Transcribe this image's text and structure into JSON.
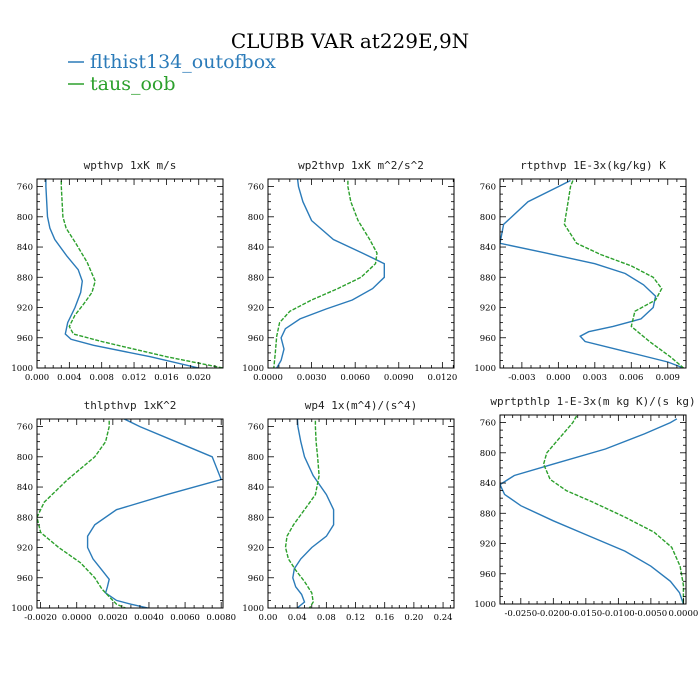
{
  "title": "CLUBB VAR at229E,9N",
  "legend": [
    {
      "label": "flthist134_outofbox",
      "color": "#2b7bb9"
    },
    {
      "label": "taus_oob",
      "color": "#2ca02c"
    }
  ],
  "chart_data": [
    {
      "type": "line",
      "title": "wpthvp   1xK m/s",
      "xlim": [
        0,
        0.023
      ],
      "ylim": [
        1000,
        750
      ],
      "xticks": [
        "0.000",
        "0.004",
        "0.008",
        "0.012",
        "0.016",
        "0.020"
      ],
      "xtick_values": [
        0,
        0.004,
        0.008,
        0.012,
        0.016,
        0.02
      ],
      "yticks": [
        "760",
        "800",
        "840",
        "880",
        "920",
        "960",
        "1000"
      ],
      "ytick_values": [
        760,
        800,
        840,
        880,
        920,
        960,
        1000
      ],
      "series": [
        {
          "name": "flthist134_outofbox",
          "x": [
            0.0011,
            0.0011,
            0.0012,
            0.0013,
            0.0016,
            0.0022,
            0.0037,
            0.0051,
            0.0056,
            0.0054,
            0.0047,
            0.0038,
            0.0035,
            0.0042,
            0.007,
            0.014,
            0.02
          ],
          "y": [
            745,
            760,
            780,
            800,
            815,
            830,
            852,
            870,
            885,
            900,
            920,
            940,
            955,
            962,
            970,
            985,
            1000
          ]
        },
        {
          "name": "taus_oob",
          "x": [
            0.003,
            0.003,
            0.0031,
            0.0032,
            0.0036,
            0.0048,
            0.0062,
            0.0072,
            0.0068,
            0.0058,
            0.0047,
            0.004,
            0.0045,
            0.008,
            0.016,
            0.023
          ],
          "y": [
            745,
            760,
            780,
            800,
            815,
            835,
            860,
            885,
            900,
            915,
            930,
            945,
            955,
            965,
            985,
            1000
          ]
        }
      ]
    },
    {
      "type": "line",
      "title": "wp2thvp   1xK m^2/s^2",
      "xlim": [
        0,
        0.0128
      ],
      "ylim": [
        1000,
        750
      ],
      "xticks": [
        "0.0000",
        "0.0030",
        "0.0060",
        "0.0090",
        "0.0120"
      ],
      "xtick_values": [
        0,
        0.003,
        0.006,
        0.009,
        0.012
      ],
      "yticks": [
        "760",
        "800",
        "840",
        "880",
        "920",
        "960",
        "1000"
      ],
      "ytick_values": [
        760,
        800,
        840,
        880,
        920,
        960,
        1000
      ],
      "series": [
        {
          "name": "flthist134_outofbox",
          "x": [
            0.002,
            0.0021,
            0.0024,
            0.003,
            0.0045,
            0.0065,
            0.008,
            0.008,
            0.0072,
            0.0058,
            0.004,
            0.0022,
            0.0012,
            0.0009,
            0.0011,
            0.0009,
            0.0006,
            0.0005
          ],
          "y": [
            745,
            760,
            780,
            805,
            830,
            848,
            862,
            880,
            895,
            910,
            922,
            935,
            948,
            960,
            975,
            990,
            1000,
            1003
          ]
        },
        {
          "name": "taus_oob",
          "x": [
            0.0055,
            0.0055,
            0.0057,
            0.0062,
            0.007,
            0.0075,
            0.0074,
            0.0064,
            0.0048,
            0.003,
            0.0015,
            0.0008,
            0.0006,
            0.0005,
            0.0004
          ],
          "y": [
            745,
            760,
            780,
            805,
            830,
            848,
            862,
            880,
            895,
            910,
            925,
            940,
            958,
            980,
            1000
          ]
        }
      ]
    },
    {
      "type": "line",
      "title": "rtpthvp   1E-3x(kg/kg) K",
      "xlim": [
        -0.0048,
        0.0105
      ],
      "ylim": [
        1000,
        750
      ],
      "xticks": [
        "-0.003",
        "0.000",
        "0.003",
        "0.006",
        "0.009"
      ],
      "xtick_values": [
        -0.003,
        0.0,
        0.003,
        0.006,
        0.009
      ],
      "yticks": [
        "760",
        "800",
        "840",
        "880",
        "920",
        "960",
        "1000"
      ],
      "ytick_values": [
        760,
        800,
        840,
        880,
        920,
        960,
        1000
      ],
      "series": [
        {
          "name": "flthist134_outofbox",
          "x": [
            0.001,
            0.0,
            -0.0025,
            -0.0045,
            -0.0048,
            -0.001,
            0.003,
            0.0055,
            0.007,
            0.008,
            0.0078,
            0.0068,
            0.0045,
            0.0025,
            0.0018,
            0.0022,
            0.0055,
            0.009,
            0.0103
          ],
          "y": [
            752,
            760,
            780,
            810,
            835,
            848,
            862,
            875,
            890,
            905,
            920,
            935,
            945,
            952,
            958,
            965,
            978,
            992,
            1000
          ]
        },
        {
          "name": "taus_oob",
          "x": [
            0.0012,
            0.001,
            0.0008,
            0.0005,
            0.0015,
            0.0035,
            0.006,
            0.0078,
            0.0085,
            0.008,
            0.0063,
            0.006,
            0.0075,
            0.0092,
            0.0103
          ],
          "y": [
            752,
            760,
            780,
            810,
            835,
            850,
            865,
            880,
            895,
            910,
            925,
            945,
            965,
            985,
            1000
          ]
        }
      ]
    },
    {
      "type": "line",
      "title": "thlpthvp   1xK^2",
      "xlim": [
        -0.0022,
        0.0081
      ],
      "ylim": [
        1000,
        750
      ],
      "xticks": [
        "-0.0020",
        "0.0000",
        "0.0020",
        "0.0040",
        "0.0060",
        "0.0080"
      ],
      "xtick_values": [
        -0.002,
        0.0,
        0.002,
        0.004,
        0.006,
        0.008
      ],
      "yticks": [
        "760",
        "800",
        "840",
        "880",
        "920",
        "960",
        "1000"
      ],
      "ytick_values": [
        760,
        800,
        840,
        880,
        920,
        960,
        1000
      ],
      "series": [
        {
          "name": "flthist134_outofbox",
          "x": [
            0.0022,
            0.0035,
            0.0055,
            0.0075,
            0.008,
            0.005,
            0.0022,
            0.001,
            0.0006,
            0.0006,
            0.0009,
            0.0014,
            0.0018,
            0.0017,
            0.0016,
            0.0022,
            0.003,
            0.0045
          ],
          "y": [
            745,
            760,
            780,
            800,
            830,
            850,
            870,
            890,
            905,
            920,
            935,
            950,
            962,
            972,
            980,
            990,
            995,
            1003
          ]
        },
        {
          "name": "taus_oob",
          "x": [
            0.0018,
            0.0018,
            0.0016,
            0.001,
            -0.0005,
            -0.0018,
            -0.0022,
            -0.002,
            -0.001,
            0.0002,
            0.001,
            0.0014,
            0.0018,
            0.0022,
            0.003
          ],
          "y": [
            745,
            760,
            780,
            800,
            830,
            860,
            880,
            900,
            920,
            940,
            960,
            975,
            985,
            995,
            1003
          ]
        }
      ]
    },
    {
      "type": "line",
      "title": "wp4   1x(m^4)/(s^4)",
      "xlim": [
        0,
        0.255
      ],
      "ylim": [
        1000,
        750
      ],
      "xticks": [
        "0.00",
        "0.04",
        "0.08",
        "0.12",
        "0.16",
        "0.20",
        "0.24"
      ],
      "xtick_values": [
        0.0,
        0.04,
        0.08,
        0.12,
        0.16,
        0.2,
        0.24
      ],
      "yticks": [
        "760",
        "800",
        "840",
        "880",
        "920",
        "960",
        "1000"
      ],
      "ytick_values": [
        760,
        800,
        840,
        880,
        920,
        960,
        1000
      ],
      "series": [
        {
          "name": "flthist134_outofbox",
          "x": [
            0.04,
            0.041,
            0.045,
            0.05,
            0.062,
            0.08,
            0.09,
            0.09,
            0.08,
            0.06,
            0.045,
            0.036,
            0.034,
            0.038,
            0.046,
            0.05,
            0.04,
            0.025
          ],
          "y": [
            745,
            760,
            780,
            800,
            825,
            850,
            870,
            890,
            905,
            920,
            935,
            948,
            960,
            972,
            982,
            992,
            1000,
            1003
          ]
        },
        {
          "name": "taus_oob",
          "x": [
            0.065,
            0.065,
            0.066,
            0.068,
            0.07,
            0.065,
            0.05,
            0.035,
            0.026,
            0.024,
            0.028,
            0.038,
            0.05,
            0.06,
            0.062,
            0.055
          ],
          "y": [
            745,
            760,
            780,
            800,
            825,
            850,
            870,
            890,
            905,
            920,
            935,
            950,
            965,
            980,
            992,
            1003
          ]
        }
      ]
    },
    {
      "type": "line",
      "title": "wprtpthlp   1-E-3x(m kg K)/(s kg)",
      "xlim": [
        -0.0282,
        0.0004
      ],
      "ylim": [
        1000,
        750
      ],
      "xticks": [
        "-0.0250",
        "-0.0200",
        "-0.0150",
        "-0.0100",
        "-0.0050",
        "0.0000"
      ],
      "xtick_values": [
        -0.025,
        -0.02,
        -0.015,
        -0.01,
        -0.005,
        0.0
      ],
      "yticks": [
        "760",
        "800",
        "840",
        "880",
        "920",
        "960",
        "1000"
      ],
      "ytick_values": [
        760,
        800,
        840,
        880,
        920,
        960,
        1000
      ],
      "series": [
        {
          "name": "flthist134_outofbox",
          "x": [
            -0.001,
            -0.002,
            -0.006,
            -0.012,
            -0.02,
            -0.026,
            -0.0282,
            -0.0275,
            -0.025,
            -0.02,
            -0.0145,
            -0.009,
            -0.005,
            -0.002,
            -0.0006,
            0.0
          ],
          "y": [
            755,
            760,
            775,
            795,
            815,
            830,
            842,
            855,
            870,
            890,
            910,
            930,
            950,
            970,
            985,
            1000
          ]
        },
        {
          "name": "taus_oob",
          "x": [
            -0.016,
            -0.017,
            -0.019,
            -0.021,
            -0.0215,
            -0.0205,
            -0.018,
            -0.014,
            -0.009,
            -0.0045,
            -0.0018,
            -0.0005,
            0.0,
            0.0
          ],
          "y": [
            745,
            760,
            780,
            800,
            815,
            835,
            850,
            865,
            885,
            905,
            925,
            950,
            975,
            1000
          ]
        }
      ]
    }
  ]
}
